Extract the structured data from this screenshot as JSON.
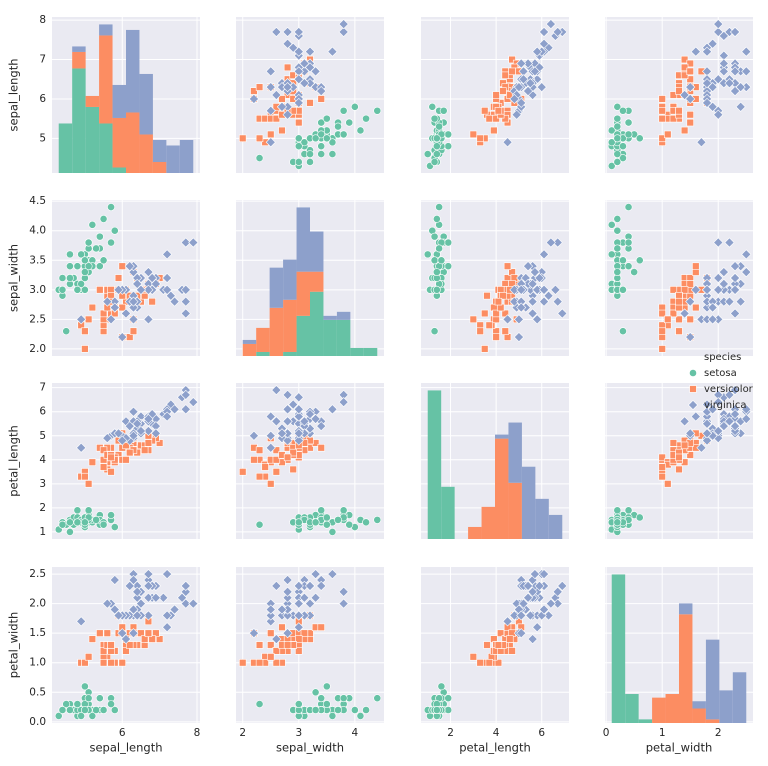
{
  "chart_data": {
    "type": "pairplot",
    "legend": {
      "title": "species"
    },
    "variables": [
      {
        "name": "sepal_length",
        "lim": [
          4.12,
          8.08
        ],
        "xticks": [
          6,
          8
        ],
        "yticks": [
          5,
          6,
          7,
          8
        ],
        "bins": [
          4.3,
          4.66,
          5.02,
          5.38,
          5.74,
          6.1,
          6.46,
          6.82,
          7.18,
          7.54,
          7.9
        ]
      },
      {
        "name": "sepal_width",
        "lim": [
          1.88,
          4.52
        ],
        "xticks": [
          2,
          3,
          4
        ],
        "yticks": [
          {
            "value": 2,
            "label": "2.0"
          },
          {
            "value": 2.5,
            "label": "2.5"
          },
          {
            "value": 3,
            "label": "3.0"
          },
          {
            "value": 3.5,
            "label": "3.5"
          },
          {
            "value": 4,
            "label": "4.0"
          },
          {
            "value": 4.5,
            "label": "4.5"
          }
        ],
        "bins": [
          2.0,
          2.24,
          2.48,
          2.72,
          2.96,
          3.2,
          3.44,
          3.68,
          3.92,
          4.16,
          4.4
        ]
      },
      {
        "name": "petal_length",
        "lim": [
          0.705,
          7.195
        ],
        "xticks": [
          2,
          4,
          6
        ],
        "yticks": [
          1,
          2,
          3,
          4,
          5,
          6,
          7
        ],
        "bins": [
          1.0,
          1.59,
          2.18,
          2.77,
          3.36,
          3.95,
          4.54,
          5.13,
          5.72,
          6.31,
          6.9
        ]
      },
      {
        "name": "petal_width",
        "lim": [
          -0.02,
          2.62
        ],
        "xticks": [
          0,
          1,
          2
        ],
        "yticks": [
          {
            "value": 0,
            "label": "0.0"
          },
          {
            "value": 0.5,
            "label": "0.5"
          },
          {
            "value": 1,
            "label": "1.0"
          },
          {
            "value": 1.5,
            "label": "1.5"
          },
          {
            "value": 2,
            "label": "2.0"
          },
          {
            "value": 2.5,
            "label": "2.5"
          }
        ],
        "bins": [
          0.1,
          0.34,
          0.58,
          0.82,
          1.06,
          1.3,
          1.54,
          1.78,
          2.02,
          2.26,
          2.5
        ]
      }
    ],
    "series": [
      {
        "name": "setosa",
        "color": "#66c2a5",
        "marker": "circle",
        "sepal_length": [
          5.1,
          4.9,
          4.7,
          4.6,
          5.0,
          5.4,
          4.6,
          5.0,
          4.4,
          4.9,
          5.4,
          4.8,
          4.8,
          4.3,
          5.8,
          5.7,
          5.4,
          5.1,
          5.7,
          5.1,
          5.4,
          5.1,
          4.6,
          5.1,
          4.8,
          5.0,
          5.0,
          5.2,
          5.2,
          4.7,
          4.8,
          5.4,
          5.2,
          5.5,
          4.9,
          5.0,
          5.5,
          4.9,
          4.4,
          5.1,
          5.0,
          4.5,
          4.4,
          5.0,
          5.1,
          4.8,
          5.1,
          4.6,
          5.3,
          5.0
        ],
        "sepal_width": [
          3.5,
          3.0,
          3.2,
          3.1,
          3.6,
          3.9,
          3.4,
          3.4,
          2.9,
          3.1,
          3.7,
          3.4,
          3.0,
          3.0,
          4.0,
          4.4,
          3.9,
          3.5,
          3.8,
          3.8,
          3.4,
          3.7,
          3.6,
          3.3,
          3.4,
          3.0,
          3.4,
          3.5,
          3.4,
          3.2,
          3.1,
          3.4,
          4.1,
          4.2,
          3.1,
          3.2,
          3.5,
          3.6,
          3.0,
          3.4,
          3.5,
          2.3,
          3.2,
          3.5,
          3.8,
          3.0,
          3.8,
          3.2,
          3.7,
          3.3
        ],
        "petal_length": [
          1.4,
          1.4,
          1.3,
          1.5,
          1.4,
          1.7,
          1.4,
          1.5,
          1.4,
          1.5,
          1.5,
          1.6,
          1.4,
          1.1,
          1.2,
          1.5,
          1.3,
          1.4,
          1.7,
          1.5,
          1.7,
          1.5,
          1.0,
          1.7,
          1.9,
          1.6,
          1.6,
          1.5,
          1.4,
          1.6,
          1.6,
          1.5,
          1.5,
          1.4,
          1.5,
          1.2,
          1.3,
          1.4,
          1.3,
          1.5,
          1.3,
          1.3,
          1.3,
          1.6,
          1.9,
          1.4,
          1.6,
          1.4,
          1.5,
          1.4
        ],
        "petal_width": [
          0.2,
          0.2,
          0.2,
          0.2,
          0.2,
          0.4,
          0.3,
          0.2,
          0.2,
          0.1,
          0.2,
          0.2,
          0.1,
          0.1,
          0.2,
          0.4,
          0.4,
          0.3,
          0.3,
          0.3,
          0.2,
          0.4,
          0.2,
          0.5,
          0.2,
          0.2,
          0.4,
          0.2,
          0.2,
          0.2,
          0.2,
          0.4,
          0.1,
          0.2,
          0.2,
          0.2,
          0.2,
          0.1,
          0.2,
          0.2,
          0.3,
          0.3,
          0.2,
          0.6,
          0.4,
          0.3,
          0.2,
          0.2,
          0.2,
          0.2
        ],
        "counts": {
          "sepal_length": [
            9,
            19,
            12,
            9,
            1,
            0,
            0,
            0,
            0,
            0
          ],
          "sepal_width": [
            0,
            1,
            0,
            1,
            10,
            16,
            9,
            9,
            2,
            2
          ],
          "petal_length": [
            37,
            13,
            0,
            0,
            0,
            0,
            0,
            0,
            0,
            0
          ],
          "petal_width": [
            41,
            8,
            1,
            0,
            0,
            0,
            0,
            0,
            0,
            0
          ]
        }
      },
      {
        "name": "versicolor",
        "color": "#fc8d62",
        "marker": "square",
        "sepal_length": [
          7.0,
          6.4,
          6.9,
          5.5,
          6.5,
          5.7,
          6.3,
          4.9,
          6.6,
          5.2,
          5.0,
          5.9,
          6.0,
          6.1,
          5.6,
          6.7,
          5.6,
          5.8,
          6.2,
          5.6,
          5.9,
          6.1,
          6.3,
          6.1,
          6.4,
          6.6,
          6.8,
          6.7,
          6.0,
          5.7,
          5.5,
          5.5,
          5.8,
          6.0,
          5.4,
          6.0,
          6.7,
          6.3,
          5.6,
          5.5,
          5.5,
          6.1,
          5.8,
          5.0,
          5.6,
          5.7,
          5.7,
          6.2,
          5.1,
          5.7
        ],
        "sepal_width": [
          3.2,
          3.2,
          3.1,
          2.3,
          2.8,
          2.8,
          3.3,
          2.4,
          2.9,
          2.7,
          2.0,
          3.0,
          2.2,
          2.9,
          2.9,
          3.1,
          3.0,
          2.7,
          2.2,
          2.5,
          3.2,
          2.8,
          2.5,
          2.8,
          2.9,
          3.0,
          2.8,
          3.0,
          2.9,
          2.6,
          2.4,
          2.4,
          2.7,
          2.7,
          3.0,
          3.4,
          3.1,
          2.3,
          3.0,
          2.5,
          2.6,
          3.0,
          2.6,
          2.3,
          2.7,
          3.0,
          2.9,
          2.9,
          2.5,
          2.8
        ],
        "petal_length": [
          4.7,
          4.5,
          4.9,
          4.0,
          4.6,
          4.5,
          4.7,
          3.3,
          4.6,
          3.9,
          3.5,
          4.2,
          4.0,
          4.7,
          3.6,
          4.4,
          4.5,
          4.1,
          4.5,
          3.9,
          4.8,
          4.0,
          4.9,
          4.7,
          4.3,
          4.4,
          4.8,
          5.0,
          4.5,
          3.5,
          3.8,
          3.7,
          3.9,
          5.1,
          4.5,
          4.5,
          4.7,
          4.4,
          4.1,
          4.0,
          4.4,
          4.6,
          4.0,
          3.3,
          4.2,
          4.2,
          4.2,
          4.3,
          3.0,
          4.1
        ],
        "petal_width": [
          1.4,
          1.5,
          1.5,
          1.3,
          1.5,
          1.3,
          1.6,
          1.0,
          1.3,
          1.4,
          1.0,
          1.5,
          1.0,
          1.4,
          1.3,
          1.4,
          1.5,
          1.0,
          1.5,
          1.1,
          1.8,
          1.3,
          1.5,
          1.2,
          1.3,
          1.4,
          1.4,
          1.7,
          1.5,
          1.0,
          1.1,
          1.0,
          1.2,
          1.6,
          1.5,
          1.6,
          1.5,
          1.3,
          1.3,
          1.3,
          1.2,
          1.4,
          1.2,
          1.0,
          1.3,
          1.2,
          1.3,
          1.3,
          1.1,
          1.3
        ],
        "counts": {
          "sepal_length": [
            0,
            3,
            2,
            16,
            9,
            11,
            7,
            2,
            0,
            0
          ],
          "sepal_width": [
            3,
            6,
            12,
            13,
            11,
            5,
            0,
            0,
            0,
            0
          ],
          "petal_length": [
            0,
            0,
            0,
            3,
            8,
            25,
            14,
            0,
            0,
            0
          ],
          "petal_width": [
            0,
            0,
            0,
            7,
            8,
            30,
            4,
            1,
            0,
            0
          ]
        }
      },
      {
        "name": "virginica",
        "color": "#8da0cb",
        "marker": "diamond",
        "sepal_length": [
          6.3,
          5.8,
          7.1,
          6.3,
          6.5,
          7.6,
          4.9,
          7.3,
          6.7,
          7.2,
          6.5,
          6.4,
          6.8,
          5.7,
          5.8,
          6.4,
          6.5,
          7.7,
          7.7,
          6.0,
          6.9,
          5.6,
          7.7,
          6.3,
          6.7,
          7.2,
          6.2,
          6.1,
          6.4,
          7.2,
          7.4,
          7.9,
          6.4,
          6.3,
          6.1,
          7.7,
          6.3,
          6.4,
          6.0,
          6.9,
          6.7,
          6.9,
          5.8,
          6.8,
          6.7,
          6.7,
          6.3,
          6.5,
          6.2,
          5.9
        ],
        "sepal_width": [
          3.3,
          2.7,
          3.0,
          2.9,
          3.0,
          3.0,
          2.5,
          2.9,
          2.5,
          3.6,
          3.2,
          2.7,
          3.0,
          2.5,
          2.8,
          3.2,
          3.0,
          3.8,
          2.6,
          2.2,
          3.2,
          2.8,
          2.8,
          2.7,
          3.3,
          3.2,
          2.8,
          3.0,
          2.8,
          3.0,
          2.8,
          3.8,
          2.8,
          2.8,
          2.6,
          3.0,
          3.4,
          3.1,
          3.0,
          3.1,
          3.1,
          3.1,
          2.7,
          3.2,
          3.3,
          3.0,
          2.5,
          3.0,
          3.4,
          3.0
        ],
        "petal_length": [
          6.0,
          5.1,
          5.9,
          5.6,
          5.8,
          6.6,
          4.5,
          6.3,
          5.8,
          6.1,
          5.1,
          5.3,
          5.5,
          5.0,
          5.1,
          5.3,
          5.5,
          6.7,
          6.9,
          5.0,
          5.7,
          4.9,
          6.7,
          4.9,
          5.7,
          6.0,
          4.8,
          4.9,
          5.6,
          5.8,
          6.1,
          6.4,
          5.6,
          5.1,
          5.6,
          6.1,
          5.6,
          5.5,
          4.8,
          5.4,
          5.6,
          5.1,
          5.1,
          5.9,
          5.7,
          5.2,
          5.0,
          5.2,
          5.4,
          5.1
        ],
        "petal_width": [
          2.5,
          1.9,
          2.1,
          1.8,
          2.2,
          2.1,
          1.7,
          1.8,
          1.8,
          2.5,
          2.0,
          1.9,
          2.1,
          2.0,
          2.4,
          2.3,
          1.8,
          2.2,
          2.3,
          1.5,
          2.3,
          2.0,
          2.0,
          1.8,
          2.1,
          1.8,
          1.8,
          1.8,
          2.1,
          1.6,
          1.9,
          2.0,
          2.2,
          1.5,
          1.4,
          2.3,
          2.4,
          1.8,
          1.8,
          2.1,
          2.4,
          2.3,
          1.9,
          2.3,
          2.5,
          2.3,
          1.9,
          2.0,
          2.3,
          1.8
        ],
        "counts": {
          "sepal_length": [
            0,
            1,
            0,
            2,
            6,
            15,
            11,
            4,
            5,
            6
          ],
          "sepal_width": [
            1,
            0,
            10,
            10,
            16,
            10,
            1,
            2,
            0,
            0
          ],
          "petal_length": [
            0,
            0,
            0,
            0,
            0,
            1,
            15,
            18,
            10,
            6
          ],
          "petal_width": [
            0,
            0,
            0,
            0,
            0,
            3,
            2,
            22,
            9,
            14
          ]
        }
      }
    ]
  }
}
